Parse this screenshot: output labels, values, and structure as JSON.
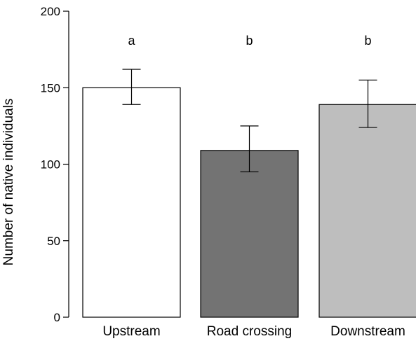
{
  "chart_data": {
    "type": "bar",
    "title": "",
    "xlabel": "",
    "ylabel": "Number of native individuals",
    "ylim": [
      0,
      200
    ],
    "yticks": [
      0,
      50,
      100,
      150,
      200
    ],
    "categories": [
      "Upstream",
      "Road crossing",
      "Downstream"
    ],
    "values": [
      150,
      109,
      139
    ],
    "error_low": [
      139,
      95,
      124
    ],
    "error_high": [
      162,
      125,
      155
    ],
    "significance_letters": [
      "a",
      "b",
      "b"
    ],
    "bar_colors": [
      "#ffffff",
      "#737373",
      "#bebebe"
    ],
    "grid": false,
    "legend": "none"
  }
}
